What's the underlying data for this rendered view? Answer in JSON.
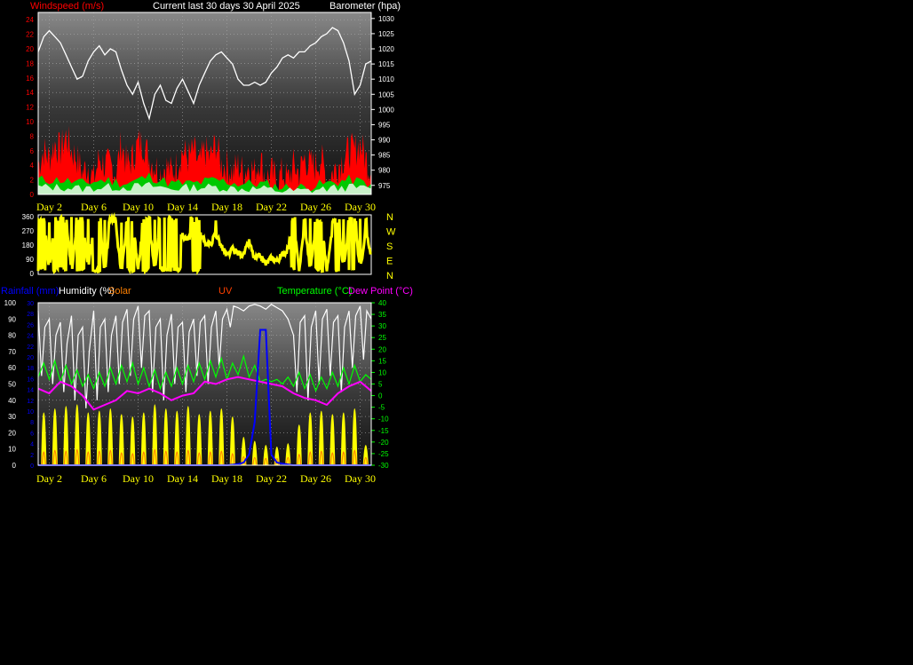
{
  "header": {
    "windspeed_label": "Windspeed (m/s)",
    "title": "Current last 30 days 30 April 2025",
    "barometer_label": "Barometer (hpa)"
  },
  "bottom_header": {
    "rainfall_label": "Rainfall (mm)",
    "humidity_label": "Humidity (%)",
    "solar_label": "Solar",
    "uv_label": "UV",
    "temperature_label": "Temperature (°C)",
    "dewpoint_label": "Dew Point (°C)"
  },
  "x_labels": [
    "Day 2",
    "Day 6",
    "Day 10",
    "Day 14",
    "Day 18",
    "Day 22",
    "Day 26",
    "Day 30"
  ],
  "colors": {
    "windspeed": "#ff0000",
    "gust_base": "#c8f0c8",
    "wind_mid": "#00c800",
    "barometer": "#ffffff",
    "direction": "#ffff00",
    "humidity": "#ffffff",
    "rainfall": "#0000ff",
    "temperature": "#00ff00",
    "dewpoint": "#ff00ff",
    "solar": "#ffff00",
    "uv": "#ff8000",
    "label_text": "#ffff00"
  },
  "chart_data": [
    {
      "type": "area",
      "name": "windspeed-barometer",
      "y_left": {
        "label": "Windspeed (m/s)",
        "ticks": [
          0,
          2,
          4,
          6,
          8,
          10,
          12,
          14,
          16,
          18,
          20,
          22,
          24
        ],
        "range": [
          0,
          25
        ]
      },
      "y_right": {
        "label": "Barometer (hpa)",
        "ticks": [
          975,
          980,
          985,
          990,
          995,
          1000,
          1005,
          1010,
          1015,
          1020,
          1025,
          1030
        ],
        "range": [
          972,
          1032
        ]
      },
      "x_range_days": [
        1,
        31
      ],
      "grid": true,
      "barometer": {
        "days": [
          1,
          1.5,
          2,
          2.5,
          3,
          3.5,
          4,
          4.5,
          5,
          5.5,
          6,
          6.5,
          7,
          7.5,
          8,
          8.5,
          9,
          9.5,
          10,
          10.5,
          11,
          11.5,
          12,
          12.5,
          13,
          13.5,
          14,
          14.5,
          15,
          15.5,
          16,
          16.5,
          17,
          17.5,
          18,
          18.5,
          19,
          19.5,
          20,
          20.5,
          21,
          21.5,
          22,
          22.5,
          23,
          23.5,
          24,
          24.5,
          25,
          25.5,
          26,
          26.5,
          27,
          27.5,
          28,
          28.5,
          29,
          29.5,
          30,
          30.5,
          31
        ],
        "values": [
          1019,
          1024,
          1026,
          1024,
          1022,
          1018,
          1014,
          1010,
          1011,
          1016,
          1019,
          1021,
          1018,
          1020,
          1019,
          1013,
          1008,
          1005,
          1009,
          1002,
          997,
          1005,
          1008,
          1003,
          1002,
          1007,
          1010,
          1006,
          1002,
          1008,
          1012,
          1016,
          1018,
          1019,
          1017,
          1015,
          1010,
          1008,
          1008,
          1009,
          1008,
          1009,
          1012,
          1014,
          1017,
          1018,
          1017,
          1019,
          1019,
          1021,
          1022,
          1024,
          1025,
          1027,
          1026,
          1022,
          1016,
          1005,
          1008,
          1015,
          1016
        ]
      },
      "windspeed": {
        "days": [
          1,
          1.5,
          2,
          2.5,
          3,
          3.5,
          4,
          4.5,
          5,
          5.5,
          6,
          6.5,
          7,
          7.5,
          8,
          8.5,
          9,
          9.5,
          10,
          10.5,
          11,
          11.5,
          12,
          12.5,
          13,
          13.5,
          14,
          14.5,
          15,
          15.5,
          16,
          16.5,
          17,
          17.5,
          18,
          18.5,
          19,
          19.5,
          20,
          20.5,
          21,
          21.5,
          22,
          22.5,
          23,
          23.5,
          24,
          24.5,
          25,
          25.5,
          26,
          26.5,
          27,
          27.5,
          28,
          28.5,
          29,
          29.5,
          30,
          30.5,
          31
        ],
        "values": [
          4,
          6,
          5,
          7,
          6,
          8,
          6,
          5,
          3,
          4,
          2,
          5,
          4,
          4,
          3,
          7,
          4,
          5,
          7,
          7,
          5,
          4,
          3,
          4,
          3,
          4,
          6,
          5,
          6,
          4,
          6,
          5,
          7,
          4,
          4,
          3,
          4,
          3,
          4,
          3,
          5,
          2,
          3,
          2,
          3,
          2,
          4,
          3,
          5,
          4,
          4,
          5,
          2,
          3,
          4,
          5,
          6,
          6,
          7,
          5,
          3
        ]
      },
      "wind_mid": {
        "days": [
          1,
          3,
          5,
          7,
          9,
          11,
          13,
          15,
          17,
          19,
          21,
          23,
          25,
          27,
          29,
          31
        ],
        "values": [
          2,
          2,
          1.5,
          2,
          1.5,
          2.5,
          1.5,
          1.5,
          2,
          1.5,
          1.5,
          1,
          1,
          1.5,
          2,
          1.5
        ]
      },
      "gust_base": {
        "days": [
          1,
          3,
          5,
          7,
          9,
          11,
          13,
          15,
          17,
          19,
          21,
          23,
          25,
          27,
          29,
          31
        ],
        "values": [
          1,
          1,
          0.8,
          1,
          1,
          1.2,
          0.8,
          1,
          1,
          0.8,
          0.8,
          0.5,
          0.5,
          0.8,
          1,
          0.8
        ]
      }
    },
    {
      "type": "line",
      "name": "wind-direction",
      "y_ticks": [
        0,
        90,
        180,
        270,
        360
      ],
      "y_range": [
        0,
        360
      ],
      "compass_labels": [
        "N",
        "W",
        "S",
        "E",
        "N"
      ],
      "x_range_days": [
        1,
        31
      ],
      "direction": {
        "days": [
          1,
          1.5,
          2,
          2.5,
          3,
          3.5,
          4,
          4.5,
          5,
          5.5,
          6,
          6.5,
          7,
          7.5,
          8,
          8.5,
          9,
          9.5,
          10,
          10.5,
          11,
          11.5,
          12,
          12.5,
          13,
          13.5,
          14,
          14.5,
          15,
          15.5,
          16,
          16.5,
          17,
          17.5,
          18,
          18.5,
          19,
          19.5,
          20,
          20.5,
          21,
          21.5,
          22,
          22.5,
          23,
          23.5,
          24,
          24.5,
          25,
          25.5,
          26,
          26.5,
          27,
          27.5,
          28,
          28.5,
          29,
          29.5,
          30,
          30.5,
          31
        ],
        "values": [
          260,
          350,
          20,
          340,
          280,
          330,
          10,
          300,
          350,
          20,
          300,
          340,
          10,
          350,
          280,
          10,
          300,
          350,
          20,
          340,
          300,
          20,
          350,
          300,
          330,
          280,
          240,
          210,
          300,
          260,
          200,
          180,
          260,
          170,
          110,
          150,
          130,
          120,
          200,
          90,
          110,
          60,
          100,
          80,
          120,
          150,
          340,
          10,
          320,
          20,
          300,
          340,
          10,
          280,
          350,
          20,
          320,
          350,
          10,
          280,
          90
        ]
      }
    },
    {
      "type": "line",
      "name": "humidity-rain-temperature",
      "y_left_humidity": {
        "label": "Humidity (%)",
        "ticks": [
          0,
          10,
          20,
          30,
          40,
          50,
          60,
          70,
          80,
          90,
          100
        ],
        "range": [
          0,
          100
        ]
      },
      "y_left_rain": {
        "label": "Rainfall (mm)",
        "ticks": [
          0,
          2,
          4,
          6,
          8,
          10,
          12,
          14,
          16,
          18,
          20,
          22,
          24,
          26,
          28,
          30
        ],
        "range": [
          0,
          30
        ]
      },
      "y_right_temp": {
        "label": "Temperature (°C)",
        "ticks": [
          -30,
          -25,
          -20,
          -15,
          -10,
          -5,
          0,
          5,
          10,
          15,
          20,
          25,
          30,
          35,
          40
        ],
        "range": [
          -30,
          40
        ]
      },
      "x_range_days": [
        1,
        31
      ],
      "humidity": {
        "days": [
          1,
          1.3,
          1.6,
          2,
          2.3,
          2.6,
          3,
          3.3,
          3.6,
          4,
          4.3,
          4.6,
          5,
          5.3,
          5.6,
          6,
          6.3,
          6.6,
          7,
          7.3,
          7.6,
          8,
          8.3,
          8.6,
          9,
          9.3,
          9.6,
          10,
          10.3,
          10.6,
          11,
          11.3,
          11.6,
          12,
          12.3,
          12.6,
          13,
          13.3,
          13.6,
          14,
          14.3,
          14.6,
          15,
          15.3,
          15.6,
          16,
          16.3,
          16.6,
          17,
          17.3,
          17.6,
          18,
          18.3,
          18.6,
          19,
          19.5,
          20,
          20.5,
          21,
          21.5,
          22,
          22.5,
          23,
          23.5,
          24,
          24.3,
          24.6,
          25,
          25.3,
          25.6,
          26,
          26.3,
          26.6,
          27,
          27.3,
          27.6,
          28,
          28.3,
          28.6,
          29,
          29.3,
          29.6,
          30,
          30.3,
          30.6,
          31
        ],
        "values": [
          95,
          55,
          85,
          90,
          50,
          80,
          88,
          45,
          75,
          92,
          40,
          80,
          85,
          35,
          70,
          95,
          40,
          85,
          90,
          45,
          80,
          92,
          50,
          88,
          96,
          55,
          90,
          98,
          60,
          92,
          95,
          45,
          85,
          90,
          40,
          80,
          93,
          50,
          85,
          88,
          45,
          82,
          90,
          55,
          88,
          92,
          50,
          85,
          95,
          60,
          90,
          96,
          85,
          98,
          97,
          95,
          98,
          99,
          98,
          96,
          99,
          97,
          95,
          90,
          80,
          45,
          88,
          92,
          40,
          85,
          95,
          50,
          90,
          96,
          55,
          88,
          92,
          45,
          85,
          95,
          60,
          92,
          98,
          65,
          95,
          90
        ]
      },
      "rainfall": {
        "days": [
          1,
          18,
          19,
          19.5,
          20,
          20.5,
          21,
          21.5,
          22,
          22.5,
          23,
          24,
          31
        ],
        "values": [
          0,
          0,
          0.2,
          0.5,
          2,
          8,
          25,
          25,
          2,
          0.5,
          0.3,
          0,
          0
        ]
      },
      "temperature": {
        "days": [
          1,
          1.5,
          2,
          2.5,
          3,
          3.5,
          4,
          4.5,
          5,
          5.5,
          6,
          6.5,
          7,
          7.5,
          8,
          8.5,
          9,
          9.5,
          10,
          10.5,
          11,
          11.5,
          12,
          12.5,
          13,
          13.5,
          14,
          14.5,
          15,
          15.5,
          16,
          16.5,
          17,
          17.5,
          18,
          18.5,
          19,
          19.5,
          20,
          20.5,
          21,
          21.5,
          22,
          22.5,
          23,
          23.5,
          24,
          24.5,
          25,
          25.5,
          26,
          26.5,
          27,
          27.5,
          28,
          28.5,
          29,
          29.5,
          30,
          30.5,
          31
        ],
        "values": [
          8,
          14,
          7,
          15,
          6,
          13,
          5,
          11,
          4,
          9,
          3,
          10,
          4,
          12,
          5,
          13,
          6,
          14,
          5,
          12,
          4,
          11,
          3,
          10,
          4,
          12,
          5,
          13,
          6,
          14,
          7,
          15,
          8,
          16,
          7,
          14,
          9,
          17,
          8,
          13,
          6,
          7,
          6,
          7,
          5,
          8,
          4,
          10,
          3,
          9,
          2,
          8,
          3,
          10,
          4,
          12,
          5,
          13,
          6,
          9,
          7
        ]
      },
      "dewpoint": {
        "days": [
          1,
          2,
          3,
          4,
          5,
          6,
          7,
          8,
          9,
          10,
          11,
          12,
          13,
          14,
          15,
          16,
          17,
          18,
          19,
          20,
          21,
          22,
          23,
          24,
          25,
          26,
          27,
          28,
          29,
          30,
          31
        ],
        "values": [
          3,
          1,
          6,
          4,
          0,
          -6,
          -4,
          -2,
          2,
          1,
          3,
          1,
          -2,
          0,
          1,
          6,
          5,
          7,
          8,
          7,
          6,
          5,
          4,
          1,
          -1,
          -2,
          -4,
          1,
          4,
          6,
          2
        ]
      },
      "solar": {
        "days": [
          1.5,
          2.5,
          3.5,
          4.5,
          5.5,
          6.5,
          7.5,
          8.5,
          9.5,
          10.5,
          11.5,
          12.5,
          13.5,
          14.5,
          15.5,
          16.5,
          17.5,
          18.5,
          19.5,
          20.5,
          21.5,
          22.5,
          23.5,
          24.5,
          25.5,
          26.5,
          27.5,
          28.5,
          29.5,
          30.5
        ],
        "peak_values": [
          60,
          65,
          68,
          70,
          60,
          62,
          65,
          58,
          55,
          60,
          70,
          65,
          62,
          68,
          58,
          62,
          65,
          55,
          30,
          25,
          20,
          18,
          22,
          45,
          60,
          62,
          58,
          60,
          65,
          20
        ]
      },
      "uv": {
        "days": [
          1.5,
          2.5,
          3.5,
          4.5,
          5.5,
          6.5,
          7.5,
          8.5,
          9.5,
          10.5,
          11.5,
          12.5,
          13.5,
          14.5,
          15.5,
          16.5,
          17.5,
          18.5,
          19.5,
          20.5,
          21.5,
          22.5,
          23.5,
          24.5,
          25.5,
          26.5,
          27.5,
          28.5,
          29.5,
          30.5
        ],
        "peak_values": [
          12,
          14,
          13,
          15,
          12,
          13,
          14,
          11,
          10,
          12,
          15,
          13,
          12,
          14,
          11,
          12,
          13,
          10,
          6,
          5,
          4,
          4,
          5,
          9,
          12,
          13,
          11,
          12,
          14,
          5
        ]
      }
    }
  ]
}
